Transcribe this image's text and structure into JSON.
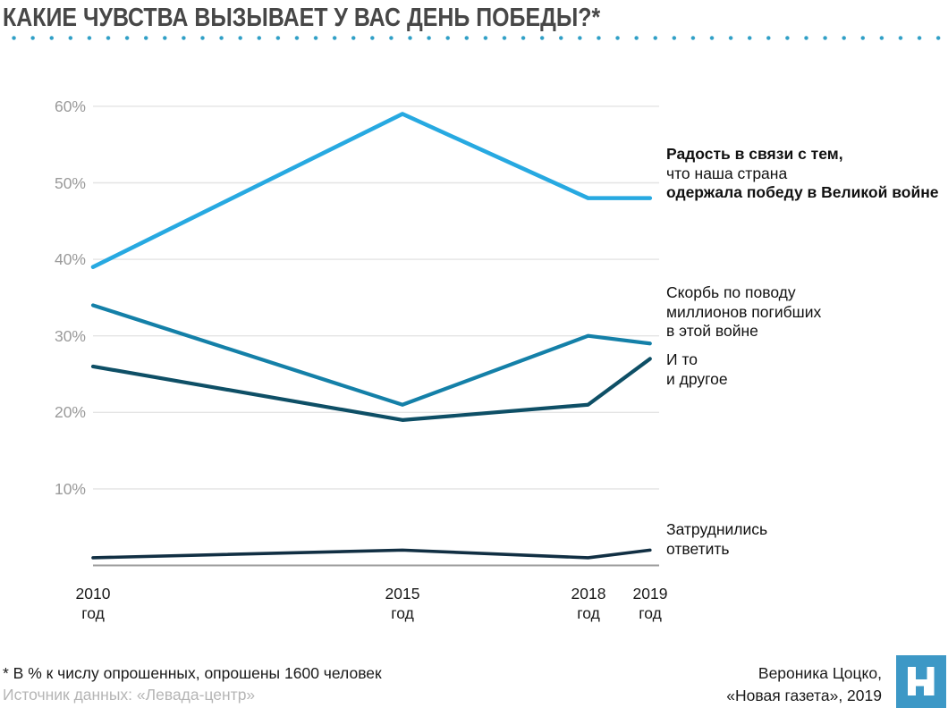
{
  "title": "КАКИЕ ЧУВСТВА ВЫЗЫВАЕТ У ВАС ДЕНЬ ПОБЕДЫ?*",
  "divider_dot_color": "#2f9fc6",
  "chart_data": {
    "type": "line",
    "title": "КАКИЕ ЧУВСТВА ВЫЗЫВАЕТ У ВАС ДЕНЬ ПОБЕДЫ?*",
    "x": [
      2010,
      2015,
      2018,
      2019
    ],
    "x_tick_labels": [
      {
        "year": "2010",
        "unit": "год"
      },
      {
        "year": "2015",
        "unit": "год"
      },
      {
        "year": "2018",
        "unit": "год"
      },
      {
        "year": "2019",
        "unit": "год"
      }
    ],
    "y_ticks": [
      "60%",
      "50%",
      "40%",
      "30%",
      "20%",
      "10%"
    ],
    "ylim": [
      0,
      63
    ],
    "grid": "horizontal",
    "gridline_color": "#e4e4e4",
    "axis_color": "#9b9b9b",
    "legend_position": "right",
    "series": [
      {
        "name": "Радость в связи с тем, что наша страна одержала победу в Великой войне",
        "color": "#27a9e1",
        "values": [
          39,
          59,
          48,
          48
        ],
        "label_lines": [
          {
            "text": "Радость в связи с тем,",
            "bold": true
          },
          {
            "text": "что наша страна",
            "bold": false
          },
          {
            "text": "одержала победу в Великой войне",
            "bold": true
          }
        ]
      },
      {
        "name": "Скорбь по поводу миллионов погибших в этой войне",
        "color": "#1480a8",
        "values": [
          34,
          21,
          30,
          29
        ],
        "label_lines": [
          {
            "text": "Скорбь по поводу",
            "bold": false
          },
          {
            "text": "миллионов погибших",
            "bold": false
          },
          {
            "text": "в этой войне",
            "bold": false
          }
        ]
      },
      {
        "name": "И то и другое",
        "color": "#0e4f66",
        "values": [
          26,
          19,
          21,
          27
        ],
        "label_lines": [
          {
            "text": "И то",
            "bold": false
          },
          {
            "text": "и другое",
            "bold": false
          }
        ]
      },
      {
        "name": "Затруднились ответить",
        "color": "#112f43",
        "values": [
          1,
          2,
          1,
          2
        ],
        "label_lines": [
          {
            "text": "Затруднились",
            "bold": false
          },
          {
            "text": "ответить",
            "bold": false
          }
        ]
      }
    ]
  },
  "footer": {
    "note": "* В % к числу опрошенных, опрошены 1600 человек",
    "source": "Источник данных: «Левада-центр»",
    "credit_line1": "Вероника Цоцко,",
    "credit_line2": "«Новая газета», 2019"
  },
  "logo": {
    "name": "Новая газета",
    "color": "#3d98c6"
  }
}
